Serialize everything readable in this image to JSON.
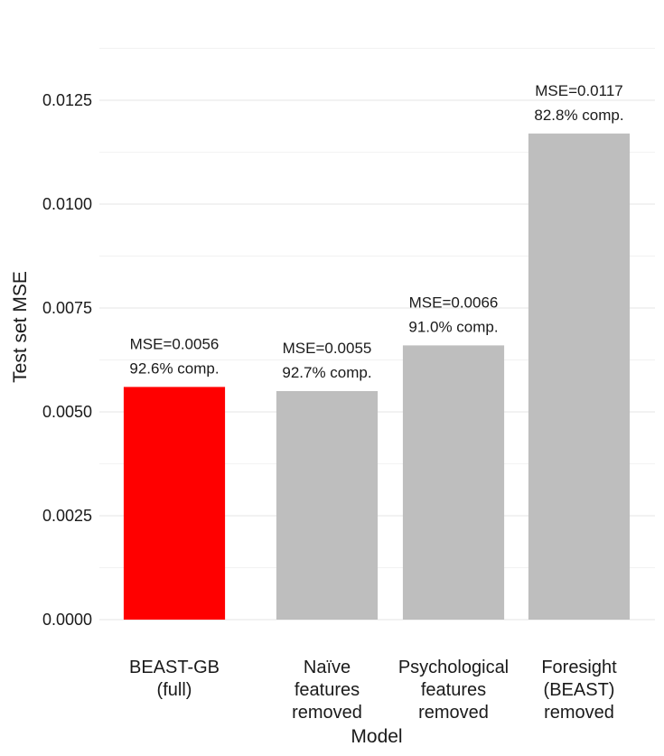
{
  "chart_data": {
    "type": "bar",
    "xlabel": "Model",
    "ylabel": "Test set MSE",
    "ylim": [
      0,
      0.014
    ],
    "yticks": [
      "0.0000",
      "0.0025",
      "0.0050",
      "0.0075",
      "0.0100",
      "0.0125"
    ],
    "ytick_values": [
      0,
      0.0025,
      0.005,
      0.0075,
      0.01,
      0.0125
    ],
    "grid": true,
    "bars": [
      {
        "category": [
          "BEAST-GB",
          "(full)"
        ],
        "value": 0.0056,
        "color": "#ff0000",
        "label_mse": "MSE=0.0056",
        "label_comp": "92.6% comp."
      },
      {
        "category": [
          "Naïve",
          "features",
          "removed"
        ],
        "value": 0.0055,
        "color": "#bebebe",
        "label_mse": "MSE=0.0055",
        "label_comp": "92.7% comp."
      },
      {
        "category": [
          "Psychological",
          "features",
          "removed"
        ],
        "value": 0.0066,
        "color": "#bebebe",
        "label_mse": "MSE=0.0066",
        "label_comp": "91.0% comp."
      },
      {
        "category": [
          "Foresight",
          "(BEAST)",
          "removed"
        ],
        "value": 0.0117,
        "color": "#bebebe",
        "label_mse": "MSE=0.0117",
        "label_comp": "82.8% comp."
      }
    ]
  }
}
